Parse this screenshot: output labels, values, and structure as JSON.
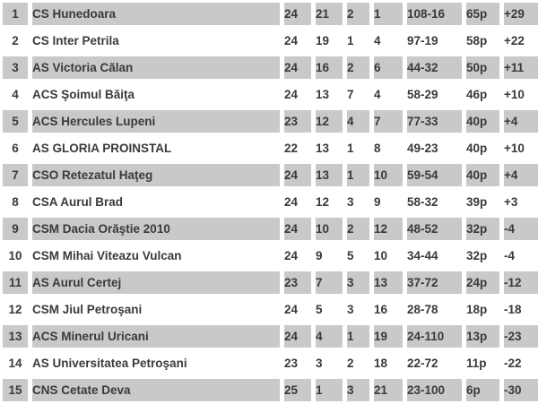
{
  "colors": {
    "row_shaded": "#c9c9c9",
    "row_plain": "#ffffff",
    "text": "#3a3a3a"
  },
  "table": {
    "column_keys": [
      "pos",
      "team",
      "played",
      "wins",
      "draws",
      "losses",
      "goals",
      "points",
      "diff"
    ],
    "rows": [
      {
        "pos": "1",
        "team": "CS Hunedoara",
        "played": "24",
        "wins": "21",
        "draws": "2",
        "losses": "1",
        "goals": "108-16",
        "points": "65p",
        "diff": "+29"
      },
      {
        "pos": "2",
        "team": "CS Inter Petrila",
        "played": "24",
        "wins": "19",
        "draws": "1",
        "losses": "4",
        "goals": "97-19",
        "points": "58p",
        "diff": "+22"
      },
      {
        "pos": "3",
        "team": "AS Victoria Călan",
        "played": "24",
        "wins": "16",
        "draws": "2",
        "losses": "6",
        "goals": "44-32",
        "points": "50p",
        "diff": "+11"
      },
      {
        "pos": "4",
        "team": "ACS Şoimul Băiţa",
        "played": "24",
        "wins": "13",
        "draws": "7",
        "losses": "4",
        "goals": "58-29",
        "points": "46p",
        "diff": "+10"
      },
      {
        "pos": "5",
        "team": "ACS Hercules Lupeni",
        "played": "23",
        "wins": "12",
        "draws": "4",
        "losses": "7",
        "goals": "77-33",
        "points": "40p",
        "diff": "+4"
      },
      {
        "pos": "6",
        "team": "AS GLORIA PROINSTAL",
        "played": "22",
        "wins": "13",
        "draws": "1",
        "losses": "8",
        "goals": "49-23",
        "points": "40p",
        "diff": "+10"
      },
      {
        "pos": "7",
        "team": "CSO Retezatul Haţeg",
        "played": "24",
        "wins": "13",
        "draws": "1",
        "losses": "10",
        "goals": "59-54",
        "points": "40p",
        "diff": "+4"
      },
      {
        "pos": "8",
        "team": "CSA Aurul Brad",
        "played": "24",
        "wins": "12",
        "draws": "3",
        "losses": "9",
        "goals": "58-32",
        "points": "39p",
        "diff": "+3"
      },
      {
        "pos": "9",
        "team": "CSM Dacia Orăştie 2010",
        "played": "24",
        "wins": "10",
        "draws": "2",
        "losses": "12",
        "goals": "48-52",
        "points": "32p",
        "diff": "-4"
      },
      {
        "pos": "10",
        "team": "CSM Mihai Viteazu Vulcan",
        "played": "24",
        "wins": "9",
        "draws": "5",
        "losses": "10",
        "goals": "34-44",
        "points": "32p",
        "diff": "-4"
      },
      {
        "pos": "11",
        "team": "AS Aurul Certej",
        "played": "23",
        "wins": "7",
        "draws": "3",
        "losses": "13",
        "goals": "37-72",
        "points": "24p",
        "diff": "-12"
      },
      {
        "pos": "12",
        "team": "CSM Jiul Petroşani",
        "played": "24",
        "wins": "5",
        "draws": "3",
        "losses": "16",
        "goals": "28-78",
        "points": "18p",
        "diff": "-18"
      },
      {
        "pos": "13",
        "team": "ACS Minerul Uricani",
        "played": "24",
        "wins": "4",
        "draws": "1",
        "losses": "19",
        "goals": "24-110",
        "points": "13p",
        "diff": "-23"
      },
      {
        "pos": "14",
        "team": "AS Universitatea Petroşani",
        "played": "23",
        "wins": "3",
        "draws": "2",
        "losses": "18",
        "goals": "22-72",
        "points": "11p",
        "diff": "-22"
      },
      {
        "pos": "15",
        "team": "CNS Cetate Deva",
        "played": "25",
        "wins": "1",
        "draws": "3",
        "losses": "21",
        "goals": "23-100",
        "points": "6p",
        "diff": "-30"
      }
    ]
  },
  "chart_data": {
    "type": "table",
    "title": "League standings",
    "columns": [
      "position",
      "team",
      "played",
      "wins",
      "draws",
      "losses",
      "goals_for_against",
      "points",
      "goal_difference"
    ],
    "rows": [
      [
        1,
        "CS Hunedoara",
        24,
        21,
        2,
        1,
        "108-16",
        "65p",
        "+29"
      ],
      [
        2,
        "CS Inter Petrila",
        24,
        19,
        1,
        4,
        "97-19",
        "58p",
        "+22"
      ],
      [
        3,
        "AS Victoria Călan",
        24,
        16,
        2,
        6,
        "44-32",
        "50p",
        "+11"
      ],
      [
        4,
        "ACS Şoimul Băiţa",
        24,
        13,
        7,
        4,
        "58-29",
        "46p",
        "+10"
      ],
      [
        5,
        "ACS Hercules Lupeni",
        23,
        12,
        4,
        7,
        "77-33",
        "40p",
        "+4"
      ],
      [
        6,
        "AS GLORIA PROINSTAL",
        22,
        13,
        1,
        8,
        "49-23",
        "40p",
        "+10"
      ],
      [
        7,
        "CSO Retezatul Haţeg",
        24,
        13,
        1,
        10,
        "59-54",
        "40p",
        "+4"
      ],
      [
        8,
        "CSA Aurul Brad",
        24,
        12,
        3,
        9,
        "58-32",
        "39p",
        "+3"
      ],
      [
        9,
        "CSM Dacia Orăştie 2010",
        24,
        10,
        2,
        12,
        "48-52",
        "32p",
        "-4"
      ],
      [
        10,
        "CSM Mihai Viteazu Vulcan",
        24,
        9,
        5,
        10,
        "34-44",
        "32p",
        "-4"
      ],
      [
        11,
        "AS Aurul Certej",
        23,
        7,
        3,
        13,
        "37-72",
        "24p",
        "-12"
      ],
      [
        12,
        "CSM Jiul Petroşani",
        24,
        5,
        3,
        16,
        "28-78",
        "18p",
        "-18"
      ],
      [
        13,
        "ACS Minerul Uricani",
        24,
        4,
        1,
        19,
        "24-110",
        "13p",
        "-23"
      ],
      [
        14,
        "AS Universitatea Petroşani",
        23,
        3,
        2,
        18,
        "22-72",
        "11p",
        "-22"
      ],
      [
        15,
        "CNS Cetate Deva",
        25,
        1,
        3,
        21,
        "23-100",
        "6p",
        "-30"
      ]
    ]
  }
}
